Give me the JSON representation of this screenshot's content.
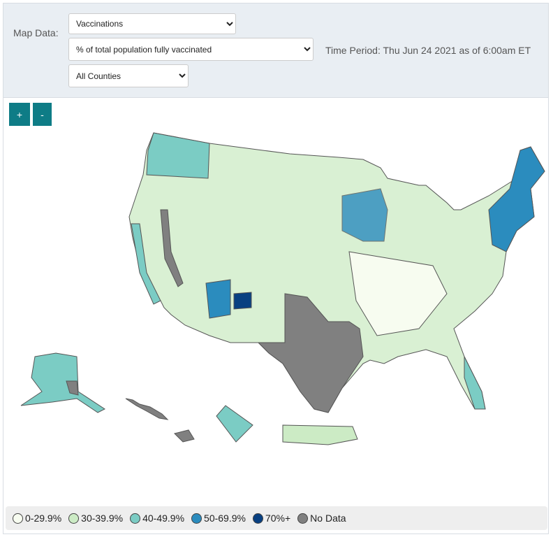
{
  "controls": {
    "label": "Map Data:",
    "data_select": "Vaccinations",
    "metric_select": "% of total population fully vaccinated",
    "area_select": "All Counties",
    "time_period": "Time Period: Thu Jun 24 2021 as of 6:00am ET"
  },
  "zoom": {
    "in": "+",
    "out": "-"
  },
  "legend": [
    {
      "label": "0-29.9%",
      "color": "#f7fcf0"
    },
    {
      "label": "30-39.9%",
      "color": "#ccebc5"
    },
    {
      "label": "40-49.9%",
      "color": "#7bccc4"
    },
    {
      "label": "50-69.9%",
      "color": "#2b8cbe"
    },
    {
      "label": "70%+",
      "color": "#084081"
    },
    {
      "label": "No Data",
      "color": "#808080"
    }
  ]
}
